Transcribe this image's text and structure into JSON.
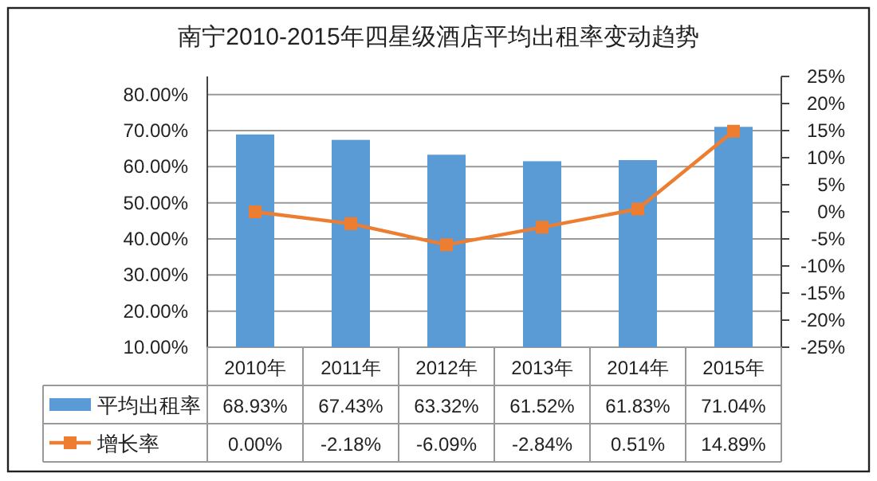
{
  "chart_data": {
    "type": "bar",
    "title": "南宁2010-2015年四星级酒店平均出租率变动趋势",
    "categories": [
      "2010年",
      "2011年",
      "2012年",
      "2013年",
      "2014年",
      "2015年"
    ],
    "series": [
      {
        "name": "平均出租率",
        "color": "#5b9bd5",
        "values": [
          68.93,
          67.43,
          63.32,
          61.52,
          61.83,
          71.04
        ],
        "value_labels": [
          "68.93%",
          "67.43%",
          "63.32%",
          "61.52%",
          "61.83%",
          "71.04%"
        ]
      },
      {
        "name": "增长率",
        "type": "line",
        "axis": "y2",
        "marker": "square",
        "color": "#ed7d31",
        "values": [
          0.0,
          -2.18,
          -6.09,
          -2.84,
          0.51,
          14.89
        ],
        "value_labels": [
          "0.00%",
          "-2.18%",
          "-6.09%",
          "-2.84%",
          "0.51%",
          "14.89%"
        ]
      }
    ],
    "ylim": [
      10,
      85
    ],
    "yticks": [
      {
        "value": 10,
        "label": "10.00%"
      },
      {
        "value": 20,
        "label": "20.00%"
      },
      {
        "value": 30,
        "label": "30.00%"
      },
      {
        "value": 40,
        "label": "40.00%"
      },
      {
        "value": 50,
        "label": "50.00%"
      },
      {
        "value": 60,
        "label": "60.00%"
      },
      {
        "value": 70,
        "label": "70.00%"
      },
      {
        "value": 80,
        "label": "80.00%"
      }
    ],
    "y2lim": [
      -25,
      25
    ],
    "y2ticks": [
      {
        "value": -25,
        "label": "-25%"
      },
      {
        "value": -20,
        "label": "-20%"
      },
      {
        "value": -15,
        "label": "-15%"
      },
      {
        "value": -10,
        "label": "-10%"
      },
      {
        "value": -5,
        "label": "-5%"
      },
      {
        "value": 0,
        "label": "0%"
      },
      {
        "value": 5,
        "label": "5%"
      },
      {
        "value": 10,
        "label": "10%"
      },
      {
        "value": 15,
        "label": "15%"
      },
      {
        "value": 20,
        "label": "20%"
      },
      {
        "value": 25,
        "label": "25%"
      }
    ],
    "grid": "y",
    "legend": "bottom left"
  }
}
